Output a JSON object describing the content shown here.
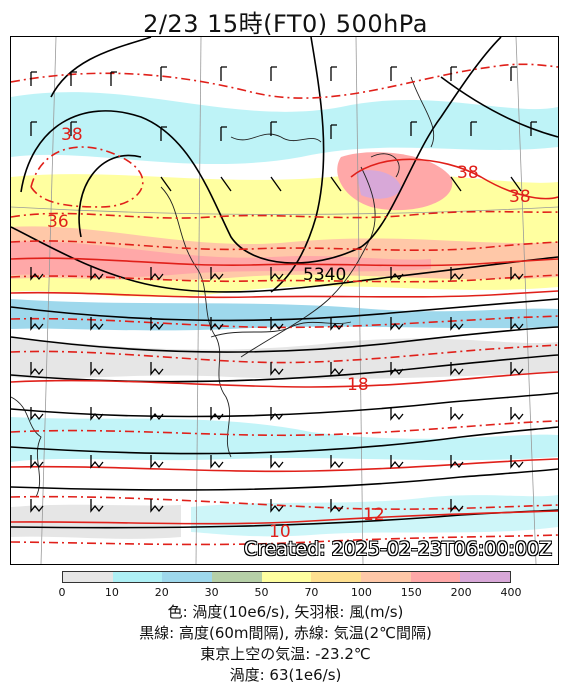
{
  "title": "2/23  15時(FT0)    500hPa",
  "created_stamp": "Created: 2025-02-23T06:00:00Z",
  "colorbar": {
    "ticks": [
      "0",
      "10",
      "20",
      "30",
      "50",
      "70",
      "100",
      "150",
      "200",
      "400"
    ],
    "colors": [
      "#e6e6e6",
      "#aef0f5",
      "#9ed8ec",
      "#b6d0a8",
      "#ffffa0",
      "#ffe090",
      "#ffc8a8",
      "#ffa8a8",
      "#d8a8d8"
    ]
  },
  "contour_labels": {
    "height": [
      "5340"
    ],
    "temperature": [
      "38",
      "36",
      "38",
      "38",
      "18",
      "12",
      "10"
    ]
  },
  "caption": {
    "line1": "色: 渦度(10e6/s), 矢羽根: 風(m/s)",
    "line2": "黒線: 高度(60m間隔), 赤線: 気温(2℃間隔)",
    "line3": "東京上空の気温: -23.2℃",
    "line4": "渦度: 63(1e6/s)"
  },
  "colors": {
    "height_contour": "#000000",
    "temp_contour": "#e0201a",
    "coastline": "#222222"
  }
}
